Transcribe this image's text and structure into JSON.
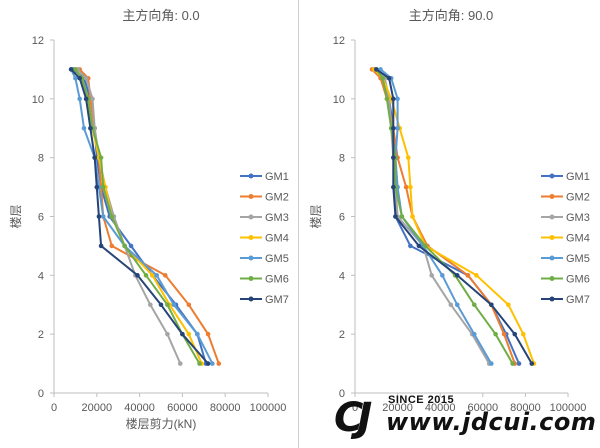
{
  "chart_data": [
    {
      "type": "line",
      "title": "主方向角: 0.0",
      "xlabel": "楼层剪力(kN)",
      "ylabel": "楼层",
      "xlim": [
        0,
        100000
      ],
      "ylim": [
        0,
        12
      ],
      "xticks": [
        "0",
        "20000",
        "40000",
        "60000",
        "80000",
        "100000"
      ],
      "yticks": [
        "0",
        "2",
        "4",
        "6",
        "8",
        "10",
        "12"
      ],
      "legend": "right",
      "series": [
        {
          "name": "GM1",
          "color": "#4472c4",
          "x": [
            71000,
            67000,
            57000,
            46000,
            36000,
            26000,
            22000,
            20000,
            19000,
            17000,
            14000,
            9000
          ],
          "y": [
            1,
            2,
            3,
            4,
            5,
            6,
            7,
            8,
            9,
            10,
            10.7,
            11
          ]
        },
        {
          "name": "GM2",
          "color": "#ed7d31",
          "x": [
            77000,
            72000,
            63000,
            52000,
            27000,
            23000,
            22000,
            21000,
            19000,
            17000,
            16000,
            12000
          ],
          "y": [
            1,
            2,
            3,
            4,
            5,
            6,
            7,
            8,
            9,
            10,
            10.7,
            11
          ]
        },
        {
          "name": "GM3",
          "color": "#a5a5a5",
          "x": [
            59000,
            53000,
            45000,
            38000,
            33000,
            28000,
            24000,
            21000,
            19000,
            18000,
            15000,
            11000
          ],
          "y": [
            1,
            2,
            3,
            4,
            5,
            6,
            7,
            8,
            9,
            10,
            10.7,
            11
          ]
        },
        {
          "name": "GM4",
          "color": "#ffc000",
          "x": [
            69000,
            63000,
            54000,
            46000,
            33000,
            27000,
            24000,
            21000,
            18000,
            16000,
            13000,
            10000
          ],
          "y": [
            1,
            2,
            3,
            4,
            5,
            6,
            7,
            8,
            9,
            10,
            10.7,
            11
          ]
        },
        {
          "name": "GM5",
          "color": "#5b9bd5",
          "x": [
            74000,
            67000,
            56000,
            48000,
            33000,
            23000,
            21000,
            19000,
            14000,
            12000,
            10000,
            8000
          ],
          "y": [
            1,
            2,
            3,
            4,
            5,
            6,
            7,
            8,
            9,
            10,
            10.7,
            11
          ]
        },
        {
          "name": "GM6",
          "color": "#70ad47",
          "x": [
            68000,
            60000,
            53000,
            43000,
            33000,
            27000,
            23000,
            22000,
            18000,
            16000,
            13000,
            10000
          ],
          "y": [
            1,
            2,
            3,
            4,
            5,
            6,
            7,
            8,
            9,
            10,
            10.7,
            11
          ]
        },
        {
          "name": "GM7",
          "color": "#264478",
          "x": [
            72000,
            60000,
            50000,
            39000,
            22000,
            21000,
            20000,
            19000,
            17000,
            15000,
            12000,
            8000
          ],
          "y": [
            1,
            2,
            3,
            4,
            5,
            6,
            7,
            8,
            9,
            10,
            10.7,
            11
          ]
        }
      ]
    },
    {
      "type": "line",
      "title": "主方向角: 90.0",
      "xlabel": "",
      "ylabel": "楼层",
      "xlim": [
        0,
        100000
      ],
      "ylim": [
        0,
        12
      ],
      "xticks": [
        "0",
        "20000",
        "40000",
        "60000",
        "80000",
        "100000"
      ],
      "yticks": [
        "0",
        "2",
        "4",
        "6",
        "8",
        "10",
        "12"
      ],
      "legend": "right",
      "series": [
        {
          "name": "GM1",
          "color": "#4472c4",
          "x": [
            77000,
            71000,
            64000,
            53000,
            26000,
            19000,
            19000,
            19000,
            18000,
            16000,
            13000,
            9000
          ],
          "y": [
            1,
            2,
            3,
            4,
            5,
            6,
            7,
            8,
            9,
            10,
            10.7,
            11
          ]
        },
        {
          "name": "GM2",
          "color": "#ed7d31",
          "x": [
            75000,
            70000,
            64000,
            53000,
            34000,
            27000,
            24000,
            20000,
            18000,
            15000,
            12000,
            8000
          ],
          "y": [
            1,
            2,
            3,
            4,
            5,
            6,
            7,
            8,
            9,
            10,
            10.7,
            11
          ]
        },
        {
          "name": "GM3",
          "color": "#a5a5a5",
          "x": [
            63000,
            55000,
            45000,
            36000,
            32000,
            20000,
            19000,
            18000,
            17000,
            16000,
            14000,
            10000
          ],
          "y": [
            1,
            2,
            3,
            4,
            5,
            6,
            7,
            8,
            9,
            10,
            10.7,
            11
          ]
        },
        {
          "name": "GM4",
          "color": "#ffc000",
          "x": [
            84000,
            79000,
            72000,
            57000,
            33000,
            27000,
            26000,
            25000,
            21000,
            17000,
            13000,
            9000
          ],
          "y": [
            1,
            2,
            3,
            4,
            5,
            6,
            7,
            8,
            9,
            10,
            10.7,
            11
          ]
        },
        {
          "name": "GM5",
          "color": "#5b9bd5",
          "x": [
            64000,
            56000,
            48000,
            41000,
            32000,
            22000,
            20000,
            19000,
            20000,
            20000,
            17000,
            12000
          ],
          "y": [
            1,
            2,
            3,
            4,
            5,
            6,
            7,
            8,
            9,
            10,
            10.7,
            11
          ]
        },
        {
          "name": "GM6",
          "color": "#70ad47",
          "x": [
            74000,
            66000,
            56000,
            47000,
            33000,
            22000,
            19000,
            19000,
            17000,
            15000,
            13000,
            10000
          ],
          "y": [
            1,
            2,
            3,
            4,
            5,
            6,
            7,
            8,
            9,
            10,
            10.7,
            11
          ]
        },
        {
          "name": "GM7",
          "color": "#264478",
          "x": [
            83000,
            75000,
            64000,
            48000,
            30000,
            19000,
            18000,
            18000,
            18000,
            18000,
            16000,
            10000
          ],
          "y": [
            1,
            2,
            3,
            4,
            5,
            6,
            7,
            8,
            9,
            10,
            10.7,
            11
          ]
        }
      ]
    }
  ],
  "watermark": {
    "logo": "CJ",
    "since": "SINCE 2015",
    "url": "www.jdcui.com"
  }
}
